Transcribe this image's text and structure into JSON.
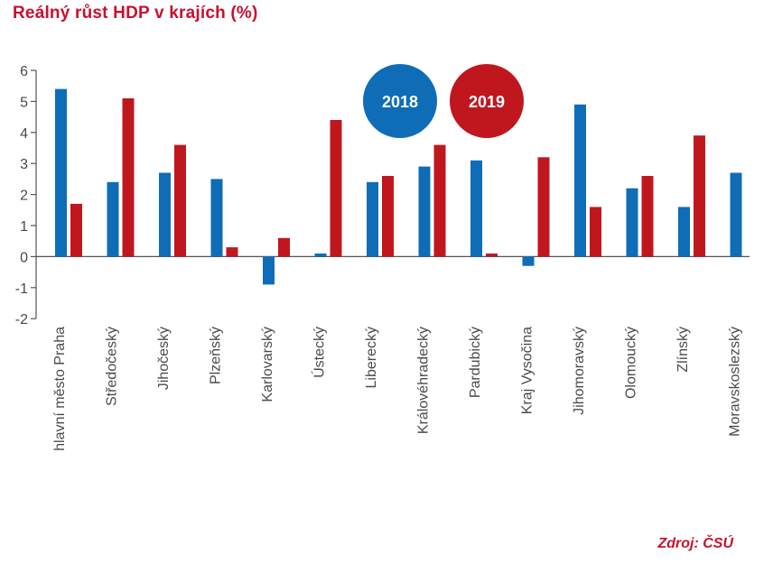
{
  "title": "Reálný růst HDP v krajích (%)",
  "source": "Zdroj: ČSÚ",
  "colors": {
    "2018": "#0f6db8",
    "2019": "#c0171f",
    "accent": "#c8102e",
    "axis": "#555555"
  },
  "chart_data": {
    "type": "bar",
    "title": "Reálný růst HDP v krajích (%)",
    "xlabel": "",
    "ylabel": "",
    "ylim": [
      -2,
      6
    ],
    "yticks": [
      "6",
      "5",
      "4",
      "3",
      "2",
      "1",
      "0",
      "-1",
      "-2"
    ],
    "grid": false,
    "legend_position": "top-center",
    "categories": [
      "hlavní město Praha",
      "Středočeský",
      "Jihočeský",
      "Plzeňský",
      "Karlovarský",
      "Ústecký",
      "Liberecký",
      "Královéhradecký",
      "Pardubický",
      "Kraj Vysočina",
      "Jihomoravský",
      "Olomoucký",
      "Zlínský",
      "Moravskoslezský"
    ],
    "series": [
      {
        "name": "2018",
        "color": "#0f6db8",
        "values": [
          5.4,
          2.4,
          2.7,
          2.5,
          -0.9,
          0.1,
          2.4,
          2.9,
          3.1,
          -0.3,
          4.9,
          2.2,
          1.6,
          2.7
        ]
      },
      {
        "name": "2019",
        "color": "#c0171f",
        "values": [
          1.7,
          5.1,
          3.6,
          0.3,
          0.6,
          4.4,
          2.6,
          3.6,
          0.1,
          3.2,
          1.6,
          2.6,
          3.9,
          null
        ]
      }
    ]
  }
}
